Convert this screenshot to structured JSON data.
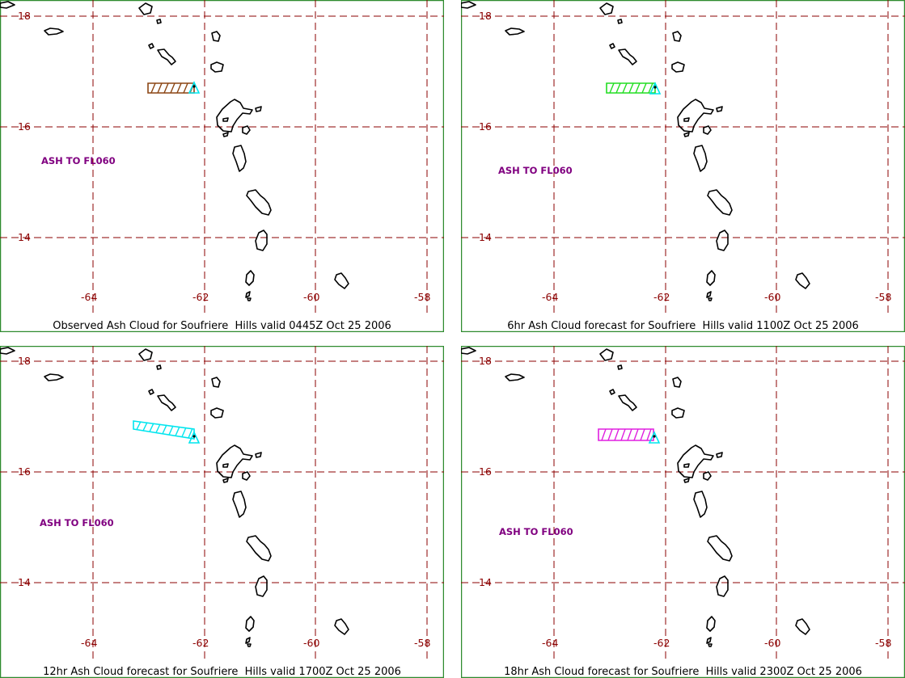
{
  "map": {
    "frame_color": "#2e8b2e",
    "grid_color": "#8b0000",
    "lat_labels": [
      "18",
      "16",
      "14"
    ],
    "lon_labels": [
      "-64",
      "-62",
      "-60",
      "-58"
    ],
    "panels": [
      {
        "id": "observed",
        "caption": "Observed Ash Cloud for Soufriere  Hills valid 0445Z Oct 25 2006",
        "ash_label": "ASH TO FL060",
        "cloud_color": "#8b4513",
        "vent_color": "#00e5ee"
      },
      {
        "id": "forecast-6hr",
        "caption": "6hr Ash Cloud forecast for Soufriere  Hills valid 1100Z Oct 25 2006",
        "ash_label": "ASH TO FL060",
        "cloud_color": "#22dd22",
        "vent_color": "#00e5ee"
      },
      {
        "id": "forecast-12hr",
        "caption": "12hr Ash Cloud forecast for Soufriere  Hills valid 1700Z Oct 25 2006",
        "ash_label": "ASH TO FL060",
        "cloud_color": "#00e5ee",
        "vent_color": "#00e5ee"
      },
      {
        "id": "forecast-18hr",
        "caption": "18hr Ash Cloud forecast for Soufriere  Hills valid 2300Z Oct 25 2006",
        "ash_label": "ASH TO FL060",
        "cloud_color": "#e020e0",
        "vent_color": "#00e5ee"
      }
    ]
  }
}
